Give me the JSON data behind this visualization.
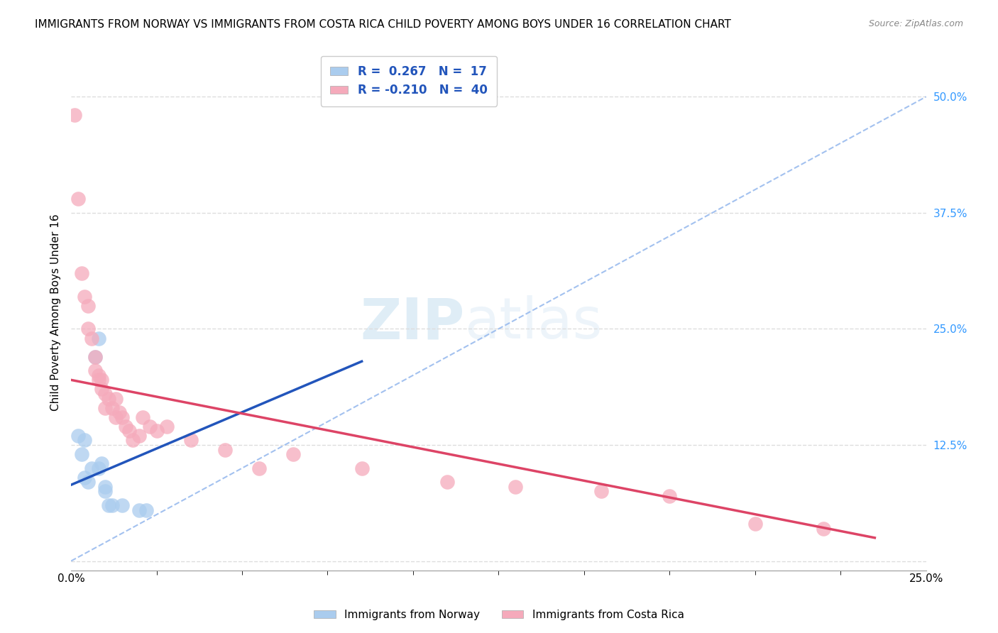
{
  "title": "IMMIGRANTS FROM NORWAY VS IMMIGRANTS FROM COSTA RICA CHILD POVERTY AMONG BOYS UNDER 16 CORRELATION CHART",
  "source": "Source: ZipAtlas.com",
  "ylabel": "Child Poverty Among Boys Under 16",
  "xlim": [
    0.0,
    0.25
  ],
  "ylim": [
    -0.01,
    0.545
  ],
  "xticks": [
    0.0,
    0.25
  ],
  "xticklabels": [
    "0.0%",
    "25.0%"
  ],
  "ytick_positions": [
    0.0,
    0.125,
    0.25,
    0.375,
    0.5
  ],
  "ytick_labels": [
    "",
    "12.5%",
    "25.0%",
    "37.5%",
    "50.0%"
  ],
  "norway_R": 0.267,
  "norway_N": 17,
  "costarica_R": -0.21,
  "costarica_N": 40,
  "norway_color": "#aaccee",
  "costarica_color": "#f5aabb",
  "norway_line_color": "#2255bb",
  "costarica_line_color": "#dd4466",
  "norway_scatter_x": [
    0.002,
    0.003,
    0.004,
    0.004,
    0.005,
    0.006,
    0.007,
    0.008,
    0.008,
    0.009,
    0.01,
    0.01,
    0.011,
    0.012,
    0.015,
    0.02,
    0.022
  ],
  "norway_scatter_y": [
    0.135,
    0.115,
    0.13,
    0.09,
    0.085,
    0.1,
    0.22,
    0.24,
    0.1,
    0.105,
    0.075,
    0.08,
    0.06,
    0.06,
    0.06,
    0.055,
    0.055
  ],
  "costarica_scatter_x": [
    0.001,
    0.002,
    0.003,
    0.004,
    0.005,
    0.005,
    0.006,
    0.007,
    0.007,
    0.008,
    0.008,
    0.009,
    0.009,
    0.01,
    0.01,
    0.011,
    0.012,
    0.013,
    0.013,
    0.014,
    0.015,
    0.016,
    0.017,
    0.018,
    0.02,
    0.021,
    0.023,
    0.025,
    0.028,
    0.035,
    0.045,
    0.055,
    0.065,
    0.085,
    0.11,
    0.13,
    0.155,
    0.175,
    0.2,
    0.22
  ],
  "costarica_scatter_y": [
    0.48,
    0.39,
    0.31,
    0.285,
    0.275,
    0.25,
    0.24,
    0.22,
    0.205,
    0.2,
    0.195,
    0.195,
    0.185,
    0.18,
    0.165,
    0.175,
    0.165,
    0.175,
    0.155,
    0.16,
    0.155,
    0.145,
    0.14,
    0.13,
    0.135,
    0.155,
    0.145,
    0.14,
    0.145,
    0.13,
    0.12,
    0.1,
    0.115,
    0.1,
    0.085,
    0.08,
    0.075,
    0.07,
    0.04,
    0.035
  ],
  "norway_line_x": [
    0.0,
    0.085
  ],
  "norway_line_y_start": 0.082,
  "norway_line_y_end": 0.215,
  "costarica_line_x": [
    0.0,
    0.235
  ],
  "costarica_line_y_start": 0.195,
  "costarica_line_y_end": 0.025,
  "diag_line_color": "#bbbbbb",
  "grid_color": "#dddddd",
  "background_color": "#ffffff",
  "title_fontsize": 11,
  "axis_label_fontsize": 11,
  "tick_fontsize": 11,
  "legend_fontsize": 12,
  "watermark_zip": "ZIP",
  "watermark_atlas": "atlas"
}
